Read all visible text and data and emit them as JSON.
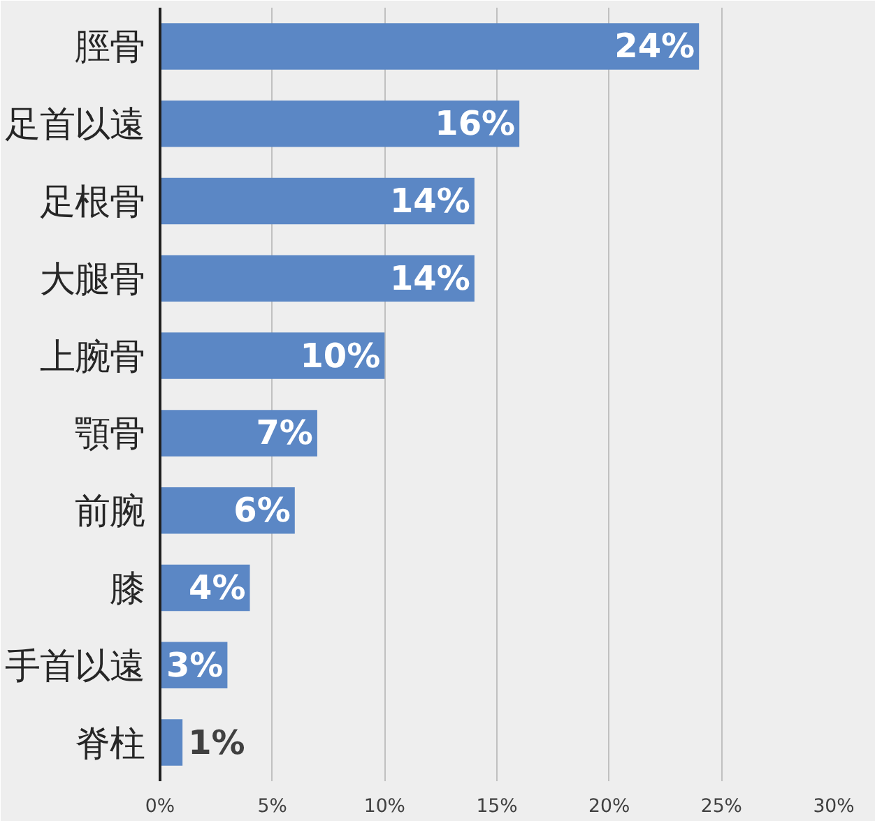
{
  "chart_data": {
    "type": "bar",
    "orientation": "horizontal",
    "categories": [
      "脛骨",
      "足首以遠",
      "足根骨",
      "大腿骨",
      "上腕骨",
      "顎骨",
      "前腕",
      "膝",
      "手首以遠",
      "脊柱"
    ],
    "values": [
      24,
      16,
      14,
      14,
      10,
      7,
      6,
      4,
      3,
      1
    ],
    "value_labels": [
      "24%",
      "16%",
      "14%",
      "14%",
      "10%",
      "7%",
      "6%",
      "4%",
      "3%",
      "1%"
    ],
    "color": "#5b87c5",
    "xlim": [
      0,
      30
    ],
    "xticks": [
      {
        "value": 0,
        "label": "0%"
      },
      {
        "value": 5,
        "label": "5%"
      },
      {
        "value": 10,
        "label": "10%"
      },
      {
        "value": 15,
        "label": "15%"
      },
      {
        "value": 20,
        "label": "20%"
      },
      {
        "value": 25,
        "label": "25%"
      },
      {
        "value": 30,
        "label": "30%"
      }
    ],
    "grid": "x"
  }
}
